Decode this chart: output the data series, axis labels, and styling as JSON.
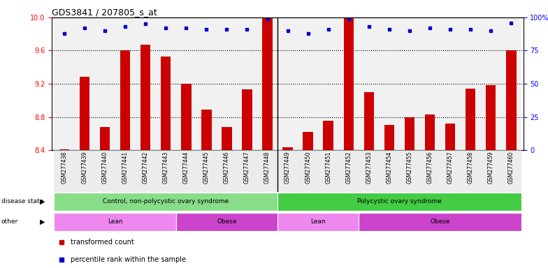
{
  "title": "GDS3841 / 207805_s_at",
  "samples": [
    "GSM277438",
    "GSM277439",
    "GSM277440",
    "GSM277441",
    "GSM277442",
    "GSM277443",
    "GSM277444",
    "GSM277445",
    "GSM277446",
    "GSM277447",
    "GSM277448",
    "GSM277449",
    "GSM277450",
    "GSM277451",
    "GSM277452",
    "GSM277453",
    "GSM277454",
    "GSM277455",
    "GSM277456",
    "GSM277457",
    "GSM277458",
    "GSM277459",
    "GSM277460"
  ],
  "transformed_counts": [
    8.41,
    9.28,
    8.68,
    9.6,
    9.67,
    9.53,
    9.2,
    8.89,
    8.68,
    9.13,
    9.99,
    8.43,
    8.62,
    8.75,
    9.99,
    9.1,
    8.7,
    8.8,
    8.83,
    8.72,
    9.14,
    9.18,
    9.6
  ],
  "percentile_ranks": [
    88,
    92,
    90,
    93,
    95,
    92,
    92,
    91,
    91,
    91,
    99,
    90,
    88,
    91,
    99,
    93,
    91,
    90,
    92,
    91,
    91,
    90,
    96
  ],
  "ylim_left": [
    8.4,
    10.0
  ],
  "ylim_right": [
    0,
    100
  ],
  "yticks_left": [
    8.4,
    8.8,
    9.2,
    9.6,
    10.0
  ],
  "yticks_right": [
    0,
    25,
    50,
    75,
    100
  ],
  "ytick_labels_right": [
    "0",
    "25",
    "50",
    "75",
    "100%"
  ],
  "bar_color": "#cc0000",
  "dot_color": "#0000cc",
  "bar_bottom": 8.4,
  "separator_after_index": 10,
  "disease_state_groups": [
    {
      "label": "Control, non-polycystic ovary syndrome",
      "start": 0,
      "end": 11,
      "color": "#88dd88"
    },
    {
      "label": "Polycystic ovary syndrome",
      "start": 11,
      "end": 23,
      "color": "#44cc44"
    }
  ],
  "other_groups": [
    {
      "label": "Lean",
      "start": 0,
      "end": 6,
      "color": "#ee88ee"
    },
    {
      "label": "Obese",
      "start": 6,
      "end": 11,
      "color": "#cc44cc"
    },
    {
      "label": "Lean",
      "start": 11,
      "end": 15,
      "color": "#ee88ee"
    },
    {
      "label": "Obese",
      "start": 15,
      "end": 23,
      "color": "#cc44cc"
    }
  ],
  "legend_red_label": "transformed count",
  "legend_blue_label": "percentile rank within the sample",
  "row_label_disease": "disease state",
  "row_label_other": "other",
  "dotted_yvals": [
    8.8,
    9.2,
    9.6
  ]
}
